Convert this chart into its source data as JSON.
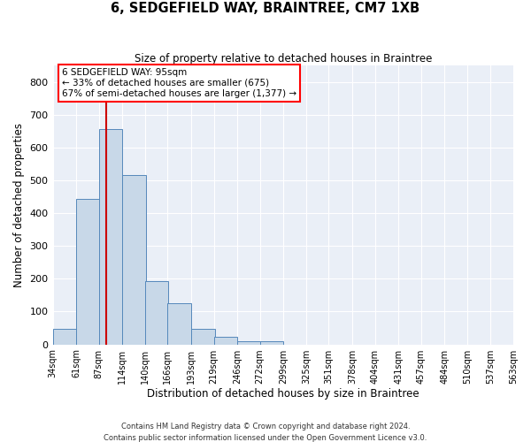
{
  "title": "6, SEDGEFIELD WAY, BRAINTREE, CM7 1XB",
  "subtitle": "Size of property relative to detached houses in Braintree",
  "xlabel": "Distribution of detached houses by size in Braintree",
  "ylabel": "Number of detached properties",
  "bin_edges": [
    34,
    61,
    87,
    114,
    140,
    166,
    193,
    219,
    246,
    272,
    299,
    325,
    351,
    378,
    404,
    431,
    457,
    484,
    510,
    537,
    563
  ],
  "bin_labels": [
    "34sqm",
    "61sqm",
    "87sqm",
    "114sqm",
    "140sqm",
    "166sqm",
    "193sqm",
    "219sqm",
    "246sqm",
    "272sqm",
    "299sqm",
    "325sqm",
    "351sqm",
    "378sqm",
    "404sqm",
    "431sqm",
    "457sqm",
    "484sqm",
    "510sqm",
    "537sqm",
    "563sqm"
  ],
  "bar_heights": [
    47,
    443,
    657,
    516,
    193,
    125,
    47,
    23,
    10,
    10,
    0,
    0,
    0,
    0,
    0,
    0,
    0,
    0,
    0,
    0
  ],
  "bar_color": "#c8d8e8",
  "bar_edge_color": "#5588bb",
  "vline_x": 95,
  "vline_color": "#cc0000",
  "annotation_line1": "6 SEDGEFIELD WAY: 95sqm",
  "annotation_line2": "← 33% of detached houses are smaller (675)",
  "annotation_line3": "67% of semi-detached houses are larger (1,377) →",
  "ylim": [
    0,
    850
  ],
  "yticks": [
    0,
    100,
    200,
    300,
    400,
    500,
    600,
    700,
    800
  ],
  "bg_color": "#eaeff7",
  "grid_color": "#ffffff",
  "footer1": "Contains HM Land Registry data © Crown copyright and database right 2024.",
  "footer2": "Contains public sector information licensed under the Open Government Licence v3.0."
}
